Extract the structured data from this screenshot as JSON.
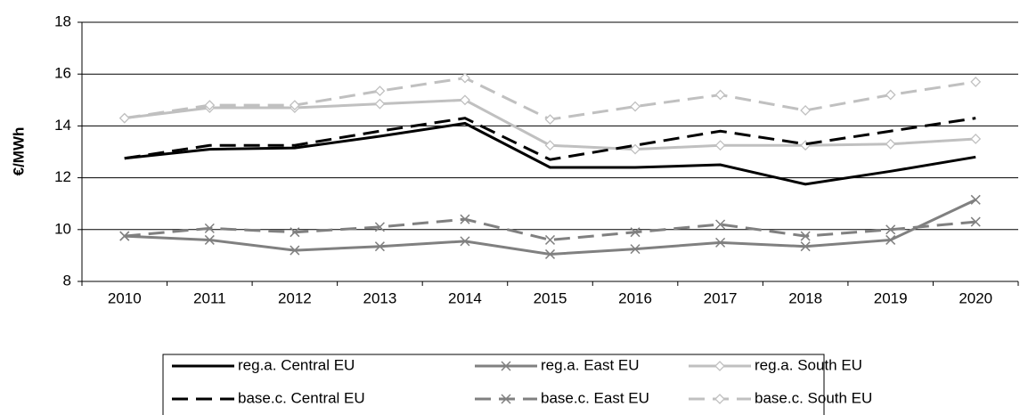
{
  "chart_data": {
    "type": "line",
    "y_label": "€/MWh",
    "categories": [
      "2010",
      "2011",
      "2012",
      "2013",
      "2014",
      "2015",
      "2016",
      "2017",
      "2018",
      "2019",
      "2020"
    ],
    "ylim": [
      8,
      18
    ],
    "yticks": [
      8,
      10,
      12,
      14,
      16,
      18
    ],
    "grid": true,
    "series": [
      {
        "name": "reg.a. Central EU",
        "color": "#000000",
        "dashed": false,
        "marker": "none",
        "values": [
          12.75,
          13.1,
          13.15,
          13.6,
          14.1,
          12.4,
          12.4,
          12.5,
          11.75,
          12.25,
          12.8
        ]
      },
      {
        "name": "reg.a. East EU",
        "color": "#808080",
        "dashed": false,
        "marker": "x",
        "values": [
          9.75,
          9.6,
          9.2,
          9.35,
          9.55,
          9.05,
          9.25,
          9.5,
          9.35,
          9.6,
          11.15
        ]
      },
      {
        "name": "reg.a. South EU",
        "color": "#c0c0c0",
        "dashed": false,
        "marker": "diamond",
        "values": [
          14.3,
          14.7,
          14.7,
          14.85,
          15.0,
          13.25,
          13.1,
          13.25,
          13.25,
          13.3,
          13.5
        ]
      },
      {
        "name": "base.c. Central EU",
        "color": "#000000",
        "dashed": true,
        "marker": "none",
        "values": [
          12.75,
          13.25,
          13.25,
          13.8,
          14.3,
          12.7,
          13.25,
          13.8,
          13.3,
          13.8,
          14.3
        ]
      },
      {
        "name": "base.c. East EU",
        "color": "#808080",
        "dashed": true,
        "marker": "x",
        "values": [
          9.75,
          10.05,
          9.9,
          10.1,
          10.4,
          9.6,
          9.9,
          10.2,
          9.75,
          10.0,
          10.3
        ]
      },
      {
        "name": "base.c. South EU",
        "color": "#c0c0c0",
        "dashed": true,
        "marker": "diamond",
        "values": [
          14.3,
          14.8,
          14.8,
          15.35,
          15.85,
          14.25,
          14.75,
          15.2,
          14.6,
          15.2,
          15.7
        ]
      }
    ]
  }
}
